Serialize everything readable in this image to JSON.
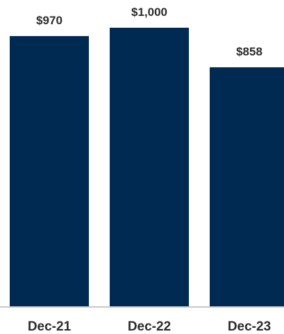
{
  "chart_data": {
    "type": "bar",
    "categories": [
      "Dec-21",
      "Dec-22",
      "Dec-23"
    ],
    "values": [
      970,
      1000,
      858
    ],
    "data_labels": [
      "$970",
      "$1,000",
      "$858"
    ],
    "ylim": [
      0,
      1000
    ],
    "grid": false,
    "bar_color": "#002a52",
    "baseline_color": "#c8c8c8"
  }
}
